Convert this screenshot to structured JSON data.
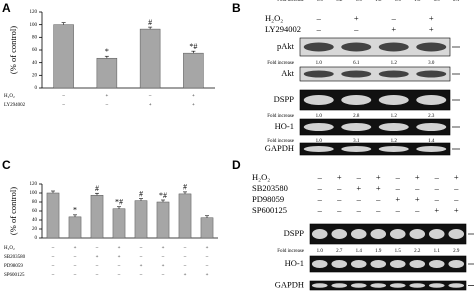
{
  "chart_data": [
    {
      "type": "bar",
      "panel": "A",
      "ylabel": "(% of control)",
      "color": "#a6a6a6",
      "values": [
        100,
        47,
        93,
        55
      ],
      "annotations": [
        null,
        "*",
        "#",
        "*#"
      ],
      "ylim": [
        0,
        120
      ],
      "yticks": [
        0,
        20,
        40,
        60,
        80,
        100,
        120
      ],
      "conditions": [
        {
          "label": "H₂O₂",
          "signs": [
            "–",
            "+",
            "–",
            "+"
          ]
        },
        {
          "label": "LY294002",
          "signs": [
            "–",
            "–",
            "+",
            "+"
          ]
        }
      ]
    },
    {
      "type": "bar",
      "panel": "C",
      "ylabel": "(% of control)",
      "color": "#a6a6a6",
      "values": [
        100,
        47,
        95,
        65,
        83,
        80,
        98,
        45
      ],
      "annotations": [
        null,
        "*",
        "#",
        "*#",
        "#",
        "*#",
        "#",
        null
      ],
      "ylim": [
        0,
        120
      ],
      "yticks": [
        0,
        20,
        40,
        60,
        80,
        100,
        120
      ],
      "conditions": [
        {
          "label": "H₂O₂",
          "signs": [
            "–",
            "+",
            "–",
            "+",
            "–",
            "+",
            "–",
            "+"
          ]
        },
        {
          "label": "SB203580",
          "signs": [
            "–",
            "–",
            "+",
            "+",
            "–",
            "–",
            "–",
            "–"
          ]
        },
        {
          "label": "PD98059",
          "signs": [
            "–",
            "–",
            "–",
            "–",
            "+",
            "+",
            "–",
            "–"
          ]
        },
        {
          "label": "SP600125",
          "signs": [
            "–",
            "–",
            "–",
            "–",
            "–",
            "–",
            "+",
            "+"
          ]
        }
      ]
    }
  ],
  "blots": [
    {
      "panel": "B",
      "conditions": [
        {
          "label": "H₂O₂",
          "signs": [
            "–",
            "+",
            "–",
            "+"
          ]
        },
        {
          "label": "LY294002",
          "signs": [
            "–",
            "–",
            "+",
            "+"
          ]
        }
      ],
      "rows": [
        {
          "label": "pAkt",
          "fold_label": "Fold increase",
          "fold": [
            "1.0",
            "6.1",
            "1.2",
            "3.0"
          ]
        },
        {
          "label": "Akt"
        },
        {
          "label": "DSPP",
          "fold_label": "Fold increase",
          "fold": [
            "1.0",
            "2.8",
            "1.2",
            "2.3"
          ]
        },
        {
          "label": "HO-1",
          "fold_label": "Fold increase",
          "fold": [
            "1.0",
            "3.1",
            "1.2",
            "1.4"
          ]
        },
        {
          "label": "GAPDH"
        }
      ]
    },
    {
      "panel": "D",
      "conditions": [
        {
          "label": "H₂O₂",
          "signs": [
            "–",
            "+",
            "–",
            "+",
            "–",
            "+",
            "–",
            "+"
          ]
        },
        {
          "label": "SB203580",
          "signs": [
            "–",
            "–",
            "+",
            "+",
            "–",
            "–",
            "–",
            "–"
          ]
        },
        {
          "label": "PD98059",
          "signs": [
            "–",
            "–",
            "–",
            "–",
            "+",
            "+",
            "–",
            "–"
          ]
        },
        {
          "label": "SP600125",
          "signs": [
            "–",
            "–",
            "–",
            "–",
            "–",
            "–",
            "+",
            "+"
          ]
        }
      ],
      "rows": [
        {
          "label": "DSPP",
          "fold_label": "Fold increase",
          "fold": [
            "1.0",
            "2.7",
            "1.4",
            "1.9",
            "1.5",
            "2.2",
            "1.1",
            "2.9"
          ]
        },
        {
          "label": "HO-1",
          "fold_label": "Fold increase",
          "fold": [
            "1.0",
            "3.2",
            "1.0",
            "1.8",
            "1.6",
            "1.6",
            "0.9",
            "2.1"
          ]
        },
        {
          "label": "GAPDH"
        }
      ]
    }
  ]
}
